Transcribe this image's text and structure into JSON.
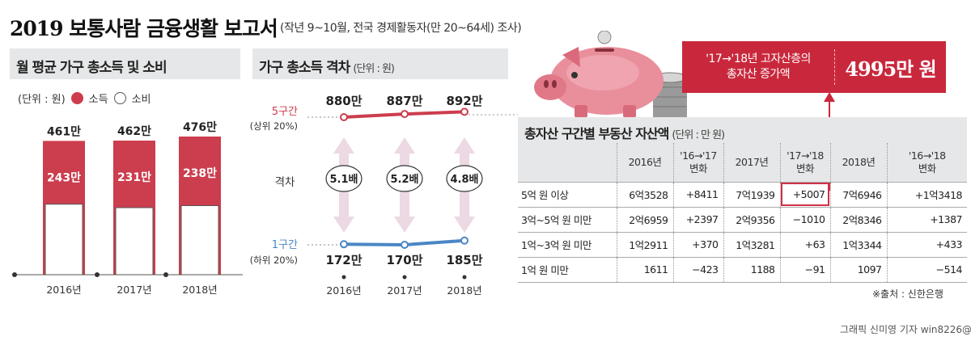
{
  "header": {
    "title": "2019 보통사람 금융생활 보고서",
    "subtitle": "(작년 9~10월, 전국 경제활동자(만 20~64세) 조사)"
  },
  "colors": {
    "accent": "#cc3d4e",
    "blue_line": "#4a86c5",
    "highlight": "#c9283c"
  },
  "panel1": {
    "title": "월 평균 가구 총소득 및 소비",
    "legend_unit": "(단위 : 원)",
    "legend_income": "소득",
    "legend_spend": "소비"
  },
  "panel2": {
    "title": "가구 총소득 격차",
    "unit": "(단위 : 원)"
  },
  "icons": [
    "piggy-bank-icon",
    "coin-stack-icon"
  ],
  "callout": {
    "label_line1": "'17→'18년 고자산층의",
    "label_line2": "총자산 증가액",
    "value": "4995만 원"
  },
  "table": {
    "title": "총자산 구간별 부동산 자산액",
    "unit": "(단위 : 만 원)",
    "headers": [
      [
        "",
        ""
      ],
      [
        "2016년",
        ""
      ],
      [
        "'16→'17",
        "변화"
      ],
      [
        "2017년",
        ""
      ],
      [
        "'17→'18",
        "변화"
      ],
      [
        "2018년",
        ""
      ],
      [
        "'16→'18",
        "변화"
      ]
    ],
    "rows": [
      [
        "5억 원 이상",
        "6억3528",
        "+8411",
        "7억1939",
        "+5007",
        "7억6946",
        "+1억3418"
      ],
      [
        "3억~5억 원 미만",
        "2억6959",
        "+2397",
        "2억9356",
        "−1010",
        "2억8346",
        "+1387"
      ],
      [
        "1억~3억 원 미만",
        "1억2911",
        "+370",
        "1억3281",
        "+63",
        "1억3344",
        "+433"
      ],
      [
        "1억 원 미만",
        "1611",
        "−423",
        "1188",
        "−91",
        "1097",
        "−514"
      ]
    ]
  },
  "source": "※출처 : 신한은행",
  "credit": "그래픽 신미영 기자 win8226@",
  "chart_data": [
    {
      "type": "bar",
      "title": "월 평균 가구 총소득 및 소비",
      "categories": [
        "2016년",
        "2017년",
        "2018년"
      ],
      "series": [
        {
          "name": "소득",
          "values": [
            461,
            462,
            476
          ],
          "labels": [
            "461만",
            "462만",
            "476만"
          ]
        },
        {
          "name": "소비",
          "values": [
            243,
            231,
            238
          ],
          "labels": [
            "243만",
            "231만",
            "238만"
          ]
        }
      ],
      "ylim": [
        0,
        476
      ]
    },
    {
      "type": "line",
      "title": "가구 총소득 격차",
      "categories": [
        "2016년",
        "2017년",
        "2018년"
      ],
      "series": [
        {
          "name": "5구간",
          "note": "(상위 20%)",
          "values": [
            880,
            887,
            892
          ],
          "labels": [
            "880만",
            "887만",
            "892만"
          ]
        },
        {
          "name": "1구간",
          "note": "(하위 20%)",
          "values": [
            172,
            170,
            185
          ],
          "labels": [
            "172만",
            "170만",
            "185만"
          ]
        }
      ],
      "gap_label": "격차",
      "gaps": [
        "5.1배",
        "5.2배",
        "4.8배"
      ]
    }
  ]
}
